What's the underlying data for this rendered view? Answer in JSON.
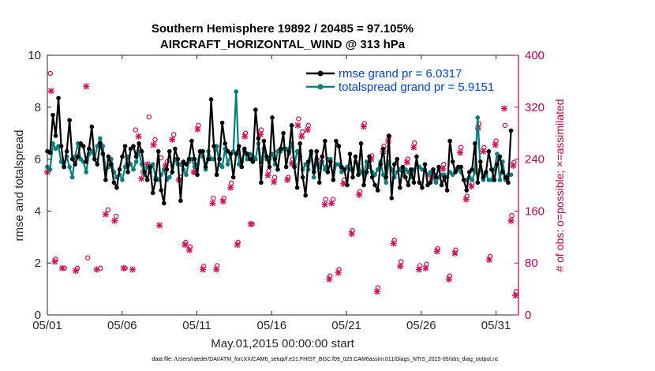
{
  "chart_data": {
    "type": "line",
    "title_line1": "Southern Hemisphere 19892 / 20485 = 97.105%",
    "title_line2": "AIRCRAFT_HORIZONTAL_WIND @ 313 hPa",
    "xlabel": "May.01,2015 00:00:00 start",
    "ylabel_left": "rmse and totalspread",
    "ylabel_right": "# of obs: o=possible; ×=assimilated",
    "footer": "data file: /Users/raeder/DAI/ATM_forcXX/CAM6_setup/f.e21.FHIST_BGC.f09_025.CAM6assim.011/Diags_NTrS_2015-05/obs_diag_output.nc",
    "xlim": [
      0,
      31.5
    ],
    "ylim_left": [
      0,
      10
    ],
    "ylim_right": [
      0,
      400
    ],
    "x_ticks": [
      0,
      5,
      10,
      15,
      20,
      25,
      30
    ],
    "x_tick_labels": [
      "05/01",
      "05/06",
      "05/11",
      "05/16",
      "05/21",
      "05/26",
      "05/31"
    ],
    "y_left_ticks": [
      "0",
      "2",
      "4",
      "6",
      "8",
      "10"
    ],
    "y_right_ticks": [
      "0",
      "80",
      "160",
      "240",
      "320",
      "400"
    ],
    "legend": {
      "position": "top-right",
      "entries": [
        "rmse grand pr = 6.0317",
        "totalspread grand pr = 5.9151"
      ]
    },
    "colors": {
      "rmse": "#000000",
      "totalspread": "#007f7f",
      "obs": "#d4145a",
      "right_axis": "#c0004b",
      "legend_text": "#0044dd"
    },
    "series": [
      {
        "name": "rmse",
        "values": [
          6.3,
          6.25,
          7.7,
          6.9,
          8.35,
          6.5,
          5.7,
          6.3,
          7.5,
          6.0,
          5.8,
          6.1,
          6.6,
          6.5,
          5.9,
          6.4,
          7.25,
          6.0,
          5.8,
          6.6,
          6.2,
          5.2,
          6.1,
          5.8,
          5.1,
          4.9,
          5.6,
          6.1,
          6.5,
          5.5,
          6.4,
          6.5,
          6.1,
          6.6,
          6.3,
          5.5,
          5.2,
          5.7,
          4.7,
          5.2,
          6.3,
          4.8,
          4.3,
          5.6,
          6.3,
          5.5,
          6.4,
          6.0,
          4.4,
          5.9,
          5.8,
          6.0,
          6.7,
          6.0,
          5.4,
          6.3,
          6.3,
          5.7,
          6.0,
          8.3,
          6.5,
          5.4,
          6.0,
          7.4,
          6.6,
          6.3,
          6.2,
          5.3,
          6.2,
          6.5,
          5.7,
          6.4,
          6.2,
          6.0,
          5.9,
          7.9,
          6.8,
          5.1,
          6.7,
          6.1,
          5.7,
          7.6,
          6.0,
          5.6,
          6.4,
          7.0,
          5.7,
          6.3,
          7.3,
          5.7,
          4.9,
          6.6,
          5.3,
          4.6,
          5.9,
          6.3,
          5.5,
          6.3,
          5.1,
          6.1,
          6.7,
          5.5,
          5.9,
          5.2,
          6.7,
          6.5,
          5.7,
          5.6,
          5.0,
          6.2,
          5.3,
          6.1,
          5.4,
          6.6,
          5.0,
          5.5,
          6.1,
          5.3,
          5.0,
          4.8,
          5.8,
          6.4,
          5.3,
          6.9,
          4.5,
          5.8,
          6.0,
          4.9,
          5.7,
          5.3,
          5.0,
          5.6,
          5.1,
          6.1,
          5.1,
          4.9,
          5.8,
          5.0,
          5.1,
          5.6,
          5.3,
          5.7,
          5.0,
          5.3,
          4.8,
          6.7,
          5.9,
          5.5,
          5.7,
          5.7,
          5.2,
          4.8,
          5.5,
          5.6,
          6.6,
          5.1,
          5.9,
          5.3,
          5.5,
          6.3,
          5.6,
          5.2,
          5.8,
          6.1,
          5.5,
          5.3,
          5.1,
          7.1
        ]
      },
      {
        "name": "totalspread",
        "values": [
          5.7,
          5.6,
          6.6,
          6.4,
          6.5,
          5.9,
          5.7,
          6.1,
          5.7,
          5.3,
          6.1,
          6.6,
          6.0,
          5.9,
          5.5,
          6.2,
          6.3,
          6.0,
          6.5,
          6.8,
          6.5,
          5.6,
          5.7,
          6.0,
          5.5,
          5.3,
          5.4,
          5.2,
          5.7,
          6.1,
          5.8,
          5.6,
          5.9,
          6.3,
          5.8,
          5.4,
          5.7,
          5.5,
          5.8,
          5.3,
          5.2,
          5.4,
          5.6,
          5.2,
          5.3,
          5.5,
          6.0,
          5.8,
          5.8,
          5.6,
          5.4,
          5.9,
          6.0,
          5.7,
          5.8,
          6.3,
          6.1,
          5.6,
          6.3,
          6.0,
          6.0,
          6.5,
          5.8,
          5.7,
          6.4,
          5.8,
          6.2,
          6.3,
          8.6,
          5.8,
          5.9,
          6.3,
          6.0,
          6.2,
          6.1,
          6.0,
          6.6,
          5.9,
          6.4,
          6.0,
          6.0,
          6.2,
          5.8,
          6.3,
          6.3,
          6.4,
          6.4,
          6.2,
          6.6,
          5.8,
          6.3,
          6.1,
          5.6,
          5.8,
          5.6,
          6.2,
          5.3,
          6.0,
          5.7,
          5.9,
          5.6,
          6.0,
          6.0,
          5.2,
          5.8,
          5.8,
          5.5,
          5.6,
          5.7,
          5.6,
          5.6,
          5.9,
          5.8,
          5.5,
          5.4,
          5.9,
          5.7,
          5.5,
          5.4,
          5.6,
          5.9,
          5.4,
          5.1,
          5.9,
          5.6,
          5.3,
          5.5,
          5.6,
          5.4,
          5.6,
          5.5,
          5.3,
          5.6,
          5.8,
          5.7,
          5.6,
          5.6,
          5.4,
          5.5,
          5.4,
          5.1,
          5.3,
          5.4,
          5.4,
          5.3,
          5.5,
          5.4,
          5.6,
          5.6,
          5.5,
          5.2,
          5.2,
          5.3,
          5.2,
          5.5,
          7.6,
          5.6,
          5.2,
          5.4,
          5.2,
          5.2,
          5.6,
          6.2,
          5.2,
          5.9,
          5.2,
          5.4,
          5.4
        ]
      },
      {
        "name": "obs_possible",
        "points": [
          [
            0.2,
            372
          ],
          [
            0.55,
            86
          ],
          [
            1.15,
            72
          ],
          [
            2.0,
            72
          ],
          [
            2.7,
            88
          ],
          [
            3.55,
            72
          ],
          [
            4.05,
            162
          ],
          [
            4.6,
            152
          ],
          [
            5.2,
            72
          ],
          [
            5.9,
            285
          ],
          [
            6.4,
            220
          ],
          [
            6.8,
            305
          ],
          [
            7.2,
            270
          ],
          [
            7.6,
            242
          ],
          [
            8.0,
            236
          ],
          [
            8.45,
            278
          ],
          [
            8.9,
            212
          ],
          [
            9.25,
            112
          ],
          [
            9.55,
            105
          ],
          [
            9.85,
            220
          ],
          [
            10.1,
            292
          ],
          [
            10.45,
            75
          ],
          [
            11.1,
            180
          ],
          [
            11.35,
            76
          ],
          [
            11.8,
            180
          ],
          [
            12.3,
            203
          ],
          [
            12.75,
            112
          ],
          [
            13.25,
            280
          ],
          [
            13.7,
            140
          ],
          [
            14.3,
            285
          ],
          [
            14.8,
            222
          ],
          [
            15.2,
            212
          ],
          [
            16.1,
            212
          ],
          [
            16.4,
            240
          ],
          [
            16.8,
            302
          ],
          [
            17.05,
            282
          ],
          [
            17.45,
            292
          ],
          [
            18.1,
            238
          ],
          [
            18.6,
            178
          ],
          [
            18.9,
            60
          ],
          [
            19.1,
            178
          ],
          [
            19.5,
            70
          ],
          [
            19.85,
            208
          ],
          [
            20.4,
            130
          ],
          [
            20.9,
            190
          ],
          [
            21.2,
            295
          ],
          [
            21.7,
            245
          ],
          [
            22.1,
            42
          ],
          [
            22.5,
            260
          ],
          [
            22.85,
            275
          ],
          [
            23.2,
            115
          ],
          [
            23.65,
            82
          ],
          [
            24.1,
            240
          ],
          [
            24.55,
            265
          ],
          [
            24.9,
            76
          ],
          [
            25.35,
            78
          ],
          [
            25.75,
            215
          ],
          [
            26.1,
            102
          ],
          [
            26.5,
            232
          ],
          [
            26.9,
            60
          ],
          [
            27.3,
            100
          ],
          [
            27.65,
            258
          ],
          [
            28.05,
            183
          ],
          [
            28.4,
            203
          ],
          [
            28.85,
            295
          ],
          [
            29.2,
            258
          ],
          [
            29.6,
            90
          ],
          [
            30.0,
            268
          ],
          [
            30.6,
            292
          ],
          [
            31.05,
            153
          ],
          [
            31.2,
            235
          ],
          [
            31.35,
            36
          ]
        ]
      },
      {
        "name": "obs_assimilated",
        "points": [
          [
            0.0,
            220
          ],
          [
            0.25,
            345
          ],
          [
            0.5,
            82
          ],
          [
            1.0,
            72
          ],
          [
            1.9,
            68
          ],
          [
            2.6,
            352
          ],
          [
            3.3,
            70
          ],
          [
            3.9,
            155
          ],
          [
            4.5,
            145
          ],
          [
            5.1,
            72
          ],
          [
            5.7,
            70
          ],
          [
            6.1,
            275
          ],
          [
            6.3,
            210
          ],
          [
            6.7,
            232
          ],
          [
            7.1,
            262
          ],
          [
            7.5,
            138
          ],
          [
            7.9,
            230
          ],
          [
            8.35,
            270
          ],
          [
            8.8,
            208
          ],
          [
            9.2,
            108
          ],
          [
            9.5,
            100
          ],
          [
            9.8,
            220
          ],
          [
            10.05,
            286
          ],
          [
            10.4,
            70
          ],
          [
            11.05,
            172
          ],
          [
            11.3,
            70
          ],
          [
            11.75,
            175
          ],
          [
            12.25,
            196
          ],
          [
            12.7,
            108
          ],
          [
            13.2,
            275
          ],
          [
            13.6,
            140
          ],
          [
            14.25,
            278
          ],
          [
            14.75,
            215
          ],
          [
            15.15,
            205
          ],
          [
            16.05,
            208
          ],
          [
            16.35,
            233
          ],
          [
            16.75,
            292
          ],
          [
            17.0,
            275
          ],
          [
            17.4,
            285
          ],
          [
            18.05,
            232
          ],
          [
            18.55,
            170
          ],
          [
            18.85,
            55
          ],
          [
            19.0,
            172
          ],
          [
            19.45,
            65
          ],
          [
            19.8,
            202
          ],
          [
            20.35,
            125
          ],
          [
            20.85,
            185
          ],
          [
            21.15,
            290
          ],
          [
            21.65,
            240
          ],
          [
            22.05,
            36
          ],
          [
            22.45,
            252
          ],
          [
            22.8,
            268
          ],
          [
            23.15,
            110
          ],
          [
            23.6,
            75
          ],
          [
            24.05,
            235
          ],
          [
            24.5,
            258
          ],
          [
            24.85,
            70
          ],
          [
            25.3,
            72
          ],
          [
            25.7,
            210
          ],
          [
            26.05,
            98
          ],
          [
            26.45,
            225
          ],
          [
            26.85,
            55
          ],
          [
            27.25,
            95
          ],
          [
            27.6,
            250
          ],
          [
            28.0,
            178
          ],
          [
            28.35,
            198
          ],
          [
            28.8,
            288
          ],
          [
            29.15,
            252
          ],
          [
            29.55,
            85
          ],
          [
            29.95,
            262
          ],
          [
            30.55,
            318
          ],
          [
            31.0,
            145
          ],
          [
            31.15,
            230
          ],
          [
            31.3,
            30
          ]
        ]
      }
    ]
  }
}
